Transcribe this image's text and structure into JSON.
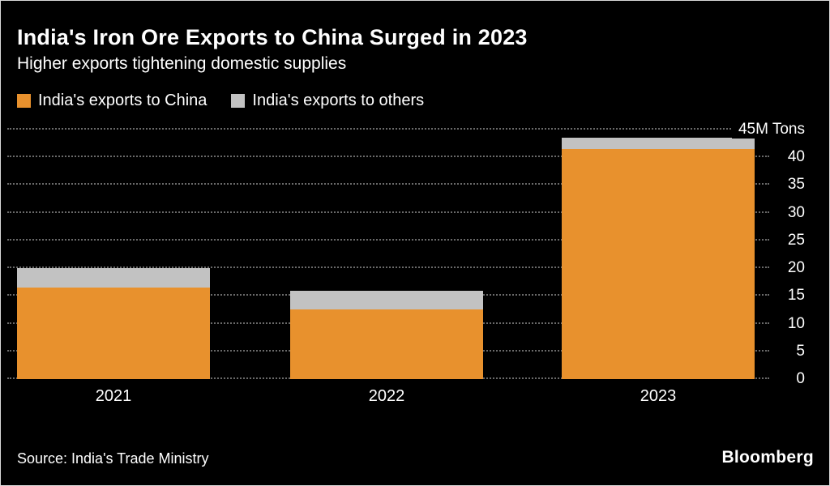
{
  "header": {
    "title": "India's Iron Ore Exports to China Surged in 2023",
    "subtitle": "Higher exports tightening domestic supplies"
  },
  "legend": [
    {
      "label": "India's exports to China",
      "color": "#E8912D"
    },
    {
      "label": "India's exports to others",
      "color": "#C2C2C2"
    }
  ],
  "chart_data": {
    "type": "bar",
    "stacked": true,
    "categories": [
      "2021",
      "2022",
      "2023"
    ],
    "series": [
      {
        "name": "India's exports to China",
        "color": "#E8912D",
        "values": [
          16.5,
          12.5,
          41.5
        ]
      },
      {
        "name": "India's exports to others",
        "color": "#C2C2C2",
        "values": [
          3.5,
          3.5,
          2.0
        ]
      }
    ],
    "totals": [
      20,
      16,
      43.5
    ],
    "title": "India's Iron Ore Exports to China Surged in 2023",
    "xlabel": "",
    "ylabel": "",
    "ylim": [
      0,
      45
    ],
    "yticks": [
      0,
      5,
      10,
      15,
      20,
      25,
      30,
      35,
      40,
      45
    ],
    "ytick_top_label": "45M Tons",
    "y_axis_side": "right",
    "grid": "dotted-horizontal",
    "legend_position": "top-left",
    "background": "#000000"
  },
  "footer": {
    "source": "Source: India's Trade Ministry",
    "brand": "Bloomberg"
  }
}
